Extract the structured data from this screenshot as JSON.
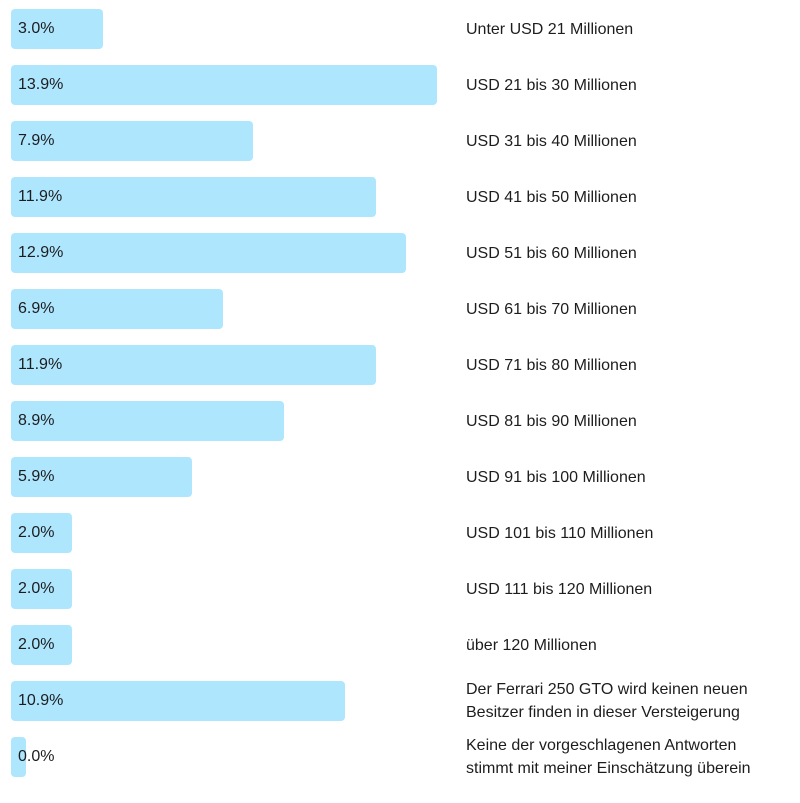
{
  "colors": {
    "bar": "#ade6fd",
    "text": "#1d1d1f",
    "background": "#ffffff"
  },
  "chart_data": {
    "type": "bar",
    "orientation": "horizontal",
    "value_unit": "%",
    "xlim": [
      0,
      13.9
    ],
    "grid": false,
    "legend": "none",
    "categories": [
      "Unter USD 21 Millionen",
      "USD 21 bis 30 Millionen",
      "USD 31 bis 40 Millionen",
      "USD 41 bis 50 Millionen",
      "USD 51 bis 60 Millionen",
      "USD 61 bis 70 Millionen",
      "USD 71 bis 80 Millionen",
      "USD 81 bis 90 Millionen",
      "USD 91 bis 100 Millionen",
      "USD 101 bis 110 Millionen",
      "USD 111 bis 120 Millionen",
      "über 120 Millionen",
      "Der Ferrari 250 GTO wird keinen neuen\nBesitzer finden in dieser Versteigerung",
      "Keine der vorgeschlagenen Antworten\nstimmt mit meiner Einschätzung überein"
    ],
    "values": [
      3.0,
      13.9,
      7.9,
      11.9,
      12.9,
      6.9,
      11.9,
      8.9,
      5.9,
      2.0,
      2.0,
      2.0,
      10.9,
      0.0
    ],
    "value_labels": [
      "3.0%",
      "13.9%",
      "7.9%",
      "11.9%",
      "12.9%",
      "6.9%",
      "11.9%",
      "8.9%",
      "5.9%",
      "2.0%",
      "2.0%",
      "2.0%",
      "10.9%",
      "0.0%"
    ]
  }
}
